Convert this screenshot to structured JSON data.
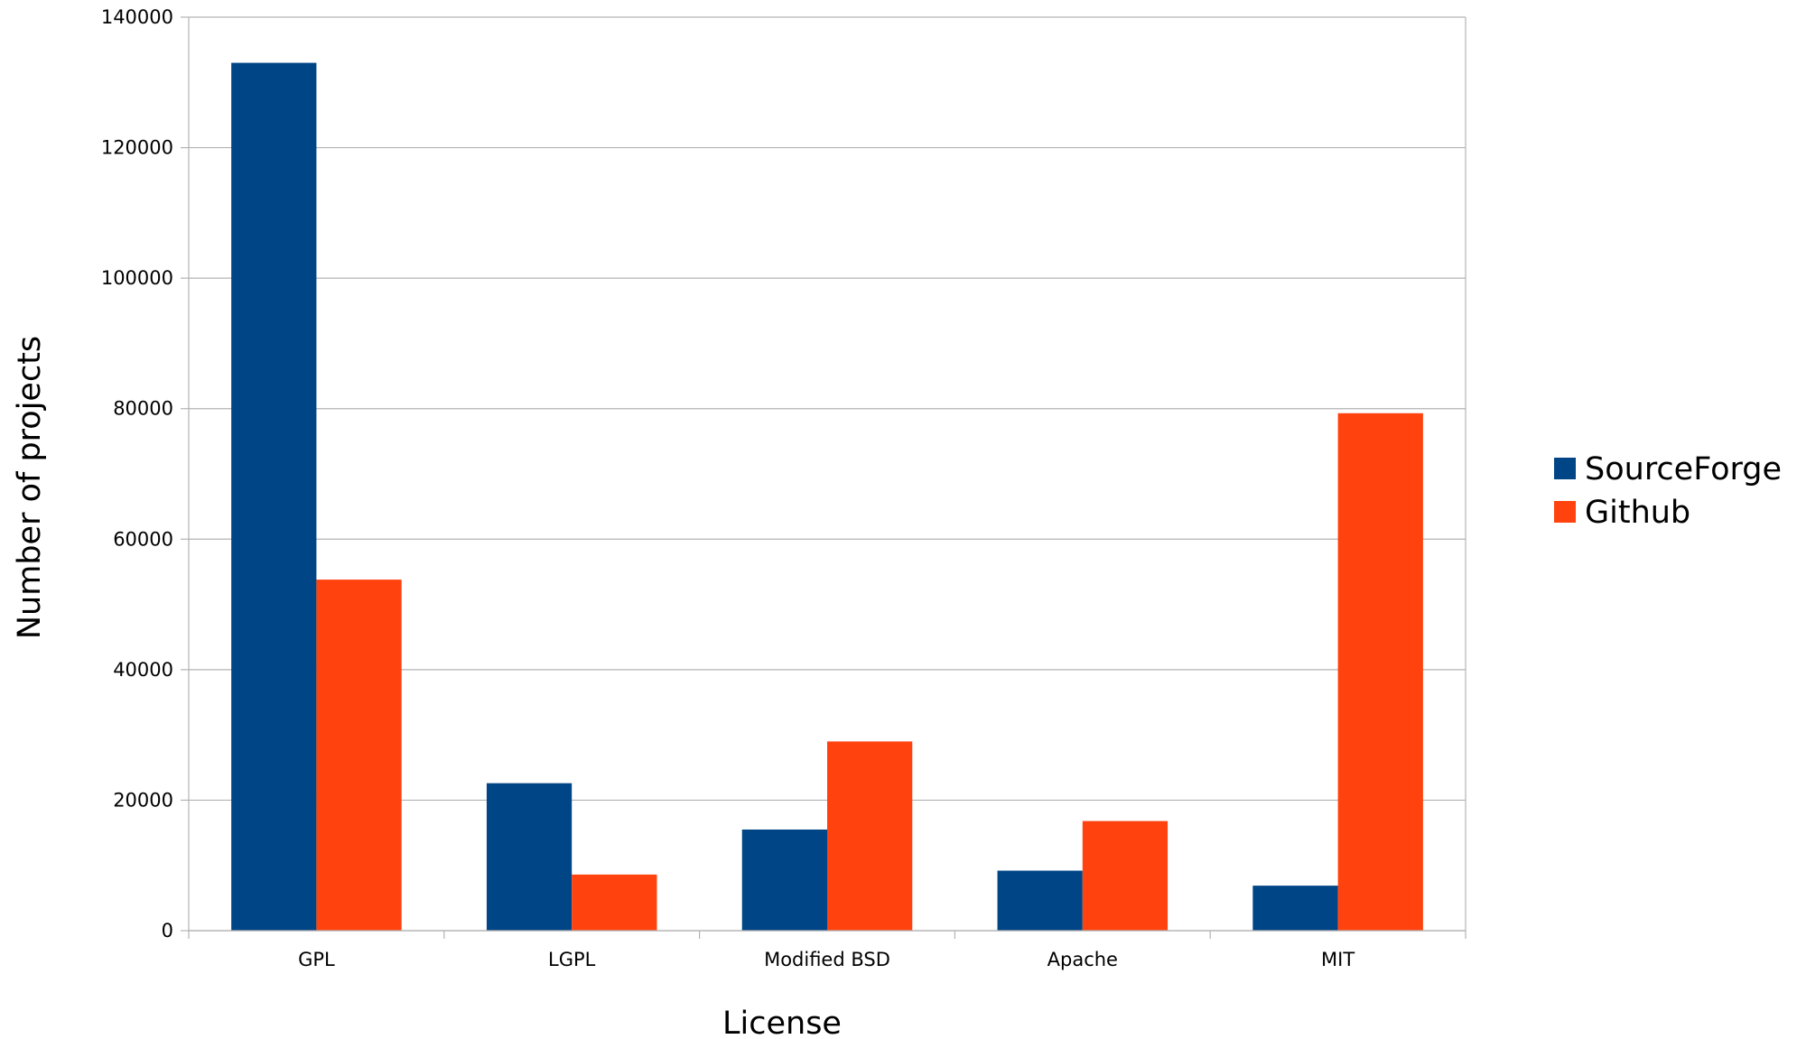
{
  "chart_data": {
    "type": "bar",
    "title": "",
    "xlabel": "License",
    "ylabel": "Number of projects",
    "categories": [
      "GPL",
      "LGPL",
      "Modified BSD",
      "Apache",
      "MIT"
    ],
    "series": [
      {
        "name": "SourceForge",
        "color": "#004586",
        "values": [
          133000,
          22600,
          15500,
          9200,
          6900
        ]
      },
      {
        "name": "Github",
        "color": "#ff420e",
        "values": [
          53800,
          8600,
          29000,
          16800,
          79300
        ]
      }
    ],
    "ylim": [
      0,
      140000
    ],
    "yticks": [
      0,
      20000,
      40000,
      60000,
      80000,
      100000,
      120000,
      140000
    ],
    "grid": true,
    "legend_position": "right"
  }
}
